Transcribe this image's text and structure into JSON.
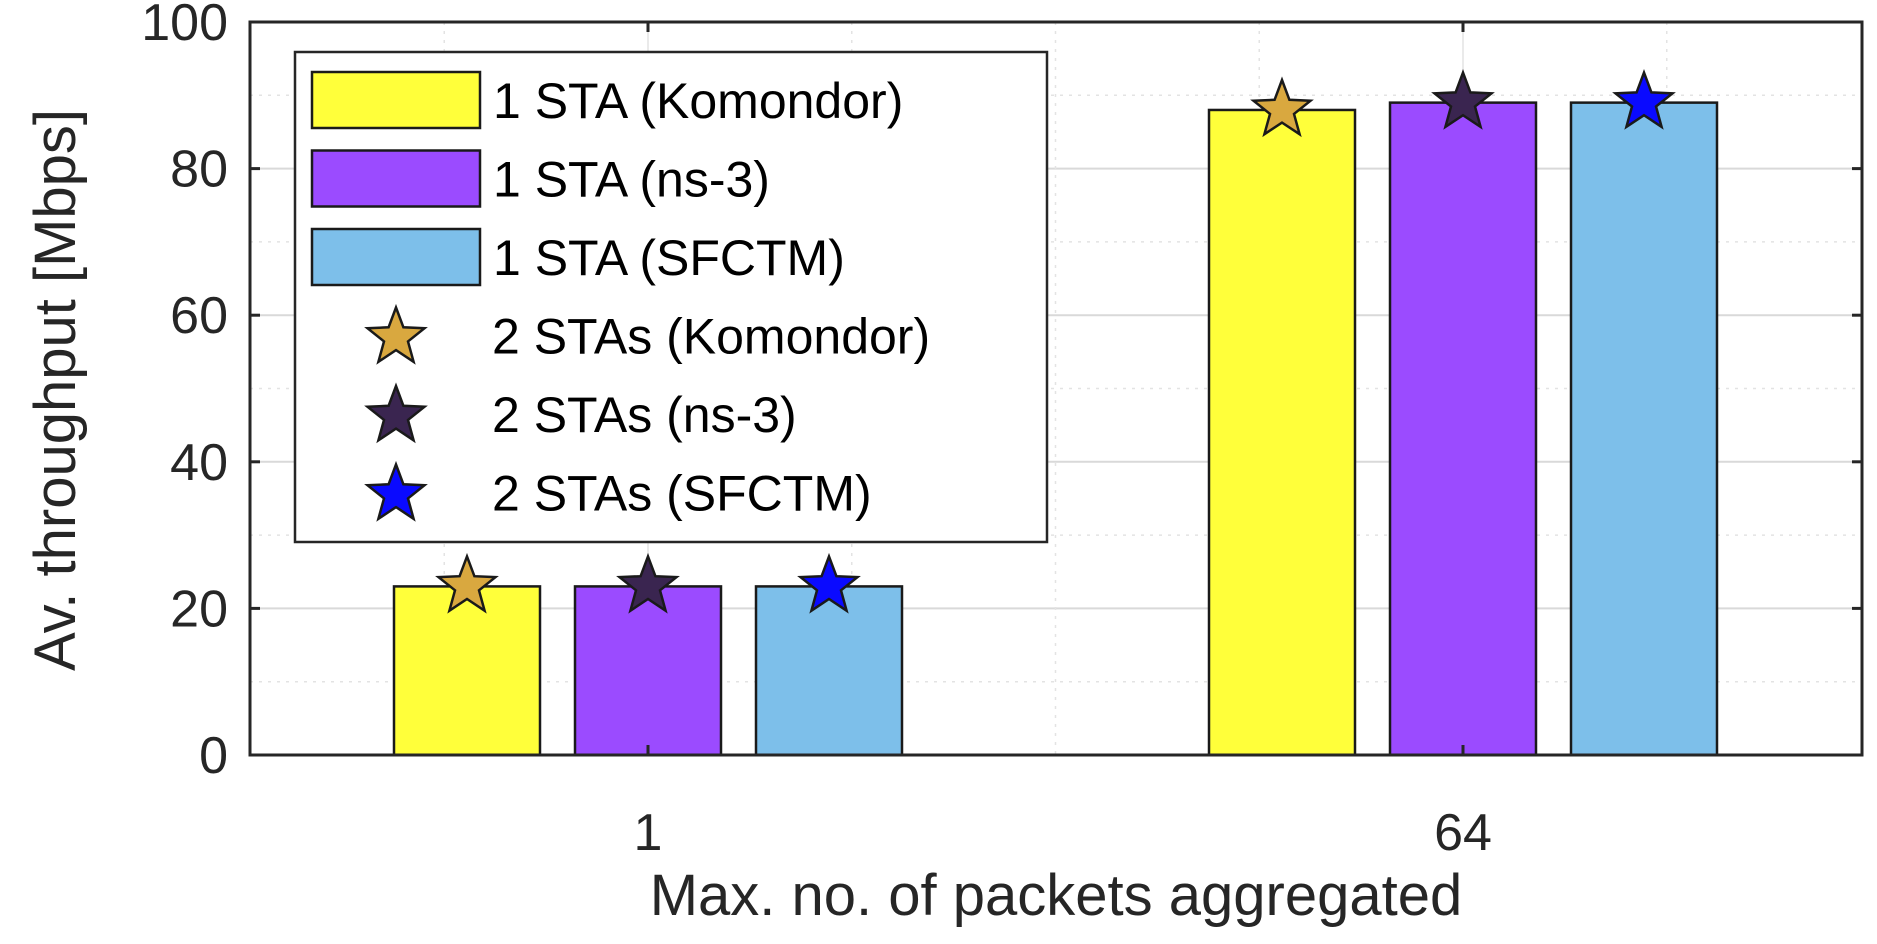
{
  "chart_data": {
    "type": "bar",
    "xlabel": "Max. no. of packets aggregated",
    "ylabel": "Av. throughput [Mbps]",
    "categories": [
      "1",
      "64"
    ],
    "ylim": [
      0,
      100
    ],
    "yticks": [
      "0",
      "20",
      "40",
      "60",
      "80",
      "100"
    ],
    "grid": true,
    "legend_position": "top-left",
    "series": [
      {
        "name": "1 STA (Komondor)",
        "mark": "bar",
        "color": "#ffff3a",
        "values": [
          23,
          88
        ]
      },
      {
        "name": "1 STA (ns-3)",
        "mark": "bar",
        "color": "#9b4bff",
        "values": [
          23,
          89
        ]
      },
      {
        "name": "1 STA (SFCTM)",
        "mark": "bar",
        "color": "#7dbfea",
        "values": [
          23,
          89
        ]
      },
      {
        "name": "2 STAs (Komondor)",
        "mark": "star",
        "color": "#d9a83f",
        "values": [
          23,
          88
        ]
      },
      {
        "name": "2 STAs (ns-3)",
        "mark": "star",
        "color": "#3a2550",
        "values": [
          23,
          89
        ]
      },
      {
        "name": "2 STAs (SFCTM)",
        "mark": "star",
        "color": "#0a0aff",
        "values": [
          23,
          89
        ]
      }
    ]
  }
}
